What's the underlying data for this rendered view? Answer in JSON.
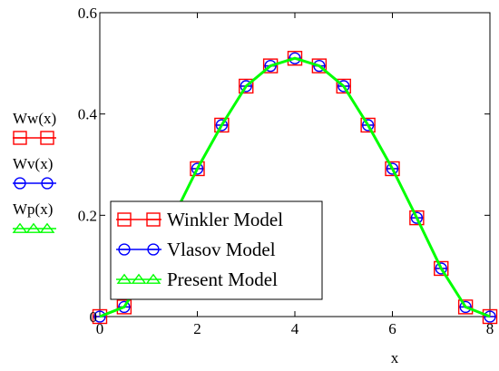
{
  "colors": {
    "winkler": "#ff0000",
    "vlasov": "#0000ff",
    "present": "#00ff00",
    "axis": "#000000",
    "background": "#ffffff"
  },
  "chart_data": {
    "type": "line",
    "xlabel": "x",
    "ylabel": "",
    "xlim": [
      0,
      8
    ],
    "ylim": [
      0,
      0.6
    ],
    "x_ticks": [
      "0",
      "2",
      "4",
      "6",
      "8"
    ],
    "y_ticks": [
      "0",
      "0.2",
      "0.4",
      "0.6"
    ],
    "y_axis_trace_labels": [
      "Ww(x)",
      "Wv(x)",
      "Wp(x)"
    ],
    "legend_position": "bottom-left",
    "grid": false,
    "x": [
      0,
      0.5,
      1,
      1.5,
      2,
      2.5,
      3,
      3.5,
      4,
      4.5,
      5,
      5.5,
      6,
      6.5,
      7,
      7.5,
      8
    ],
    "series": [
      {
        "name": "Winkler Model",
        "marker": "square",
        "values": [
          0.0,
          0.019,
          0.095,
          0.195,
          0.292,
          0.378,
          0.455,
          0.495,
          0.51,
          0.495,
          0.455,
          0.378,
          0.292,
          0.195,
          0.095,
          0.019,
          0.0
        ]
      },
      {
        "name": "Vlasov Model",
        "marker": "circle",
        "values": [
          0.0,
          0.019,
          0.095,
          0.195,
          0.292,
          0.378,
          0.455,
          0.495,
          0.51,
          0.495,
          0.455,
          0.378,
          0.292,
          0.195,
          0.095,
          0.019,
          0.0
        ]
      },
      {
        "name": "Present Model",
        "marker": "triangle",
        "values": [
          0.0,
          0.019,
          0.095,
          0.195,
          0.292,
          0.378,
          0.455,
          0.495,
          0.51,
          0.495,
          0.455,
          0.378,
          0.292,
          0.195,
          0.095,
          0.019,
          0.0
        ]
      }
    ]
  }
}
